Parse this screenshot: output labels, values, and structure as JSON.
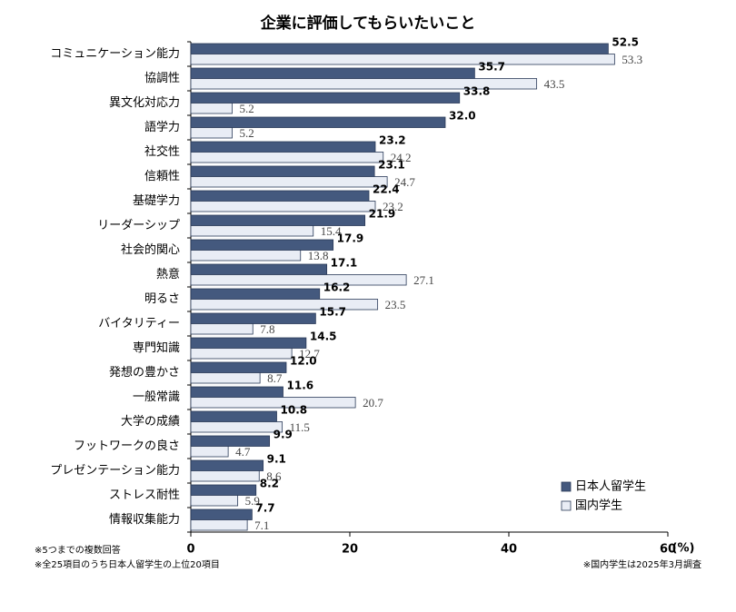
{
  "chart_data": {
    "type": "bar",
    "orientation": "horizontal",
    "title": "企業に評価してもらいたいこと",
    "categories": [
      "コミュニケーション能力",
      "協調性",
      "異文化対応力",
      "語学力",
      "社交性",
      "信頼性",
      "基礎学力",
      "リーダーシップ",
      "社会的関心",
      "熱意",
      "明るさ",
      "バイタリティー",
      "専門知識",
      "発想の豊かさ",
      "一般常識",
      "大学の成績",
      "フットワークの良さ",
      "プレゼンテーション能力",
      "ストレス耐性",
      "情報収集能力"
    ],
    "series": [
      {
        "name": "日本人留学生",
        "color": "#44597e",
        "values": [
          52.5,
          35.7,
          33.8,
          32.0,
          23.2,
          23.1,
          22.4,
          21.9,
          17.9,
          17.1,
          16.2,
          15.7,
          14.5,
          12.0,
          11.6,
          10.8,
          9.9,
          9.1,
          8.2,
          7.7
        ],
        "value_labels": [
          "52.5",
          "35.7",
          "33.8",
          "32.0",
          "23.2",
          "23.1",
          "22.4",
          "21.9",
          "17.9",
          "17.1",
          "16.2",
          "15.7",
          "14.5",
          "12.0",
          "11.6",
          "10.8",
          "9.9",
          "9.1",
          "8.2",
          "7.7"
        ]
      },
      {
        "name": "国内学生",
        "color": "#e9edf5",
        "values": [
          53.3,
          43.5,
          5.2,
          5.2,
          24.2,
          24.7,
          23.2,
          15.4,
          13.8,
          27.1,
          23.5,
          7.8,
          12.7,
          8.7,
          20.7,
          11.5,
          4.7,
          8.6,
          5.9,
          7.1
        ],
        "value_labels": [
          "53.3",
          "43.5",
          "5.2",
          "5.2",
          "24.2",
          "24.7",
          "23.2",
          "15.4",
          "13.8",
          "27.1",
          "23.5",
          "7.8",
          "12.7",
          "8.7",
          "20.7",
          "11.5",
          "4.7",
          "8.6",
          "5.9",
          "7.1"
        ]
      }
    ],
    "xlim": [
      0,
      60
    ],
    "xticks": [
      0,
      20,
      40,
      60
    ],
    "xlabel": "(%)",
    "legend": "lower right",
    "notes": [
      "※5つまでの複数回答",
      "※全25項目のうち日本人留学生の上位20項目",
      "※国内学生は2025年3月調査"
    ]
  }
}
